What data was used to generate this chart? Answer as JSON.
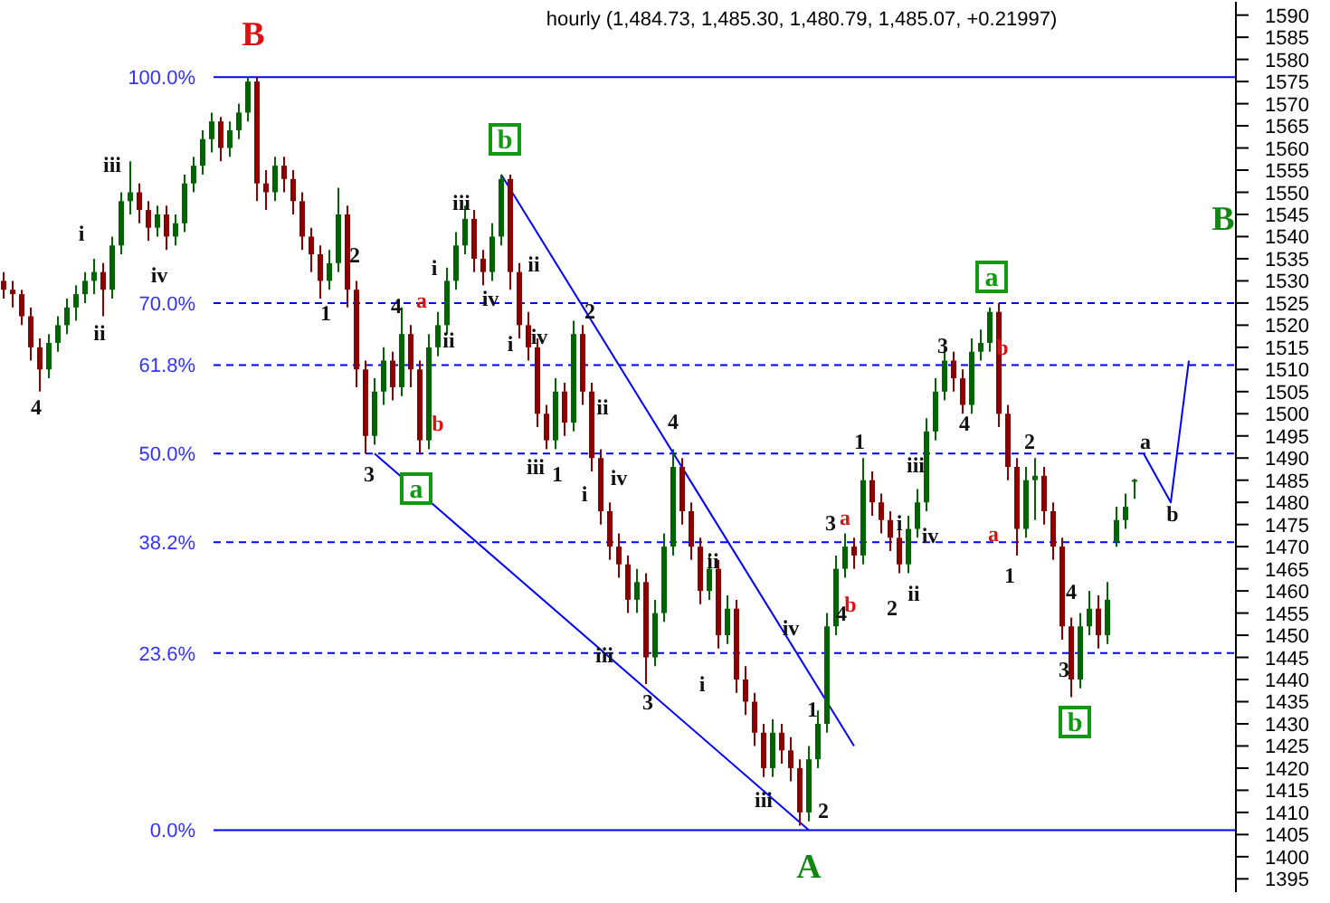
{
  "chart_data": {
    "type": "candlestick",
    "title": "hourly (1,484.73, 1,485.30, 1,480.79, 1,485.07, +0.21997)",
    "categories": [
      null,
      null,
      null,
      null,
      null,
      null,
      null,
      null,
      null,
      null,
      null,
      null,
      null,
      null,
      null,
      null,
      null,
      null,
      null,
      null,
      null,
      null,
      null,
      null,
      null,
      null,
      null,
      null,
      null,
      null,
      null,
      null,
      null,
      null,
      null,
      null,
      null,
      null,
      null,
      null,
      null,
      null,
      null,
      null,
      null,
      null,
      null,
      null,
      null,
      null,
      null,
      null,
      null,
      null,
      null,
      null,
      null,
      null,
      null,
      null,
      null,
      null,
      null,
      null,
      null,
      null,
      null,
      null,
      null,
      null,
      null,
      null,
      null,
      null,
      null,
      null,
      null,
      null,
      null,
      null,
      null,
      null,
      null,
      null,
      null,
      null,
      null,
      null,
      null,
      null,
      null,
      null,
      null,
      null,
      null,
      null,
      null,
      null,
      null,
      null,
      null,
      null,
      null,
      null,
      null,
      null,
      null,
      null,
      null,
      null,
      null,
      null,
      null,
      null,
      null,
      null,
      null,
      null,
      null,
      null,
      null,
      null,
      null,
      null,
      null,
      null,
      null,
      null,
      null,
      null,
      null,
      null
    ],
    "ohlc": [
      [
        1530,
        1532,
        1526,
        1528
      ],
      [
        1528,
        1530,
        1524,
        1527
      ],
      [
        1527,
        1528,
        1520,
        1522
      ],
      [
        1522,
        1524,
        1512,
        1515
      ],
      [
        1515,
        1517,
        1505,
        1510
      ],
      [
        1510,
        1518,
        1508,
        1516
      ],
      [
        1516,
        1522,
        1514,
        1520
      ],
      [
        1520,
        1526,
        1518,
        1524
      ],
      [
        1524,
        1529,
        1521,
        1527
      ],
      [
        1527,
        1532,
        1525,
        1530
      ],
      [
        1530,
        1535,
        1527,
        1532
      ],
      [
        1532,
        1534,
        1522,
        1528
      ],
      [
        1528,
        1540,
        1526,
        1538
      ],
      [
        1538,
        1550,
        1536,
        1548
      ],
      [
        1548,
        1557,
        1545,
        1550
      ],
      [
        1550,
        1552,
        1543,
        1546
      ],
      [
        1546,
        1548,
        1539,
        1542
      ],
      [
        1542,
        1547,
        1540,
        1545
      ],
      [
        1545,
        1547,
        1537,
        1540
      ],
      [
        1540,
        1545,
        1538,
        1543
      ],
      [
        1543,
        1554,
        1541,
        1552
      ],
      [
        1552,
        1558,
        1550,
        1556
      ],
      [
        1556,
        1564,
        1554,
        1562
      ],
      [
        1562,
        1568,
        1559,
        1566
      ],
      [
        1566,
        1567,
        1557,
        1560
      ],
      [
        1560,
        1566,
        1558,
        1564
      ],
      [
        1564,
        1570,
        1562,
        1568
      ],
      [
        1568,
        1576,
        1566,
        1575
      ],
      [
        1575,
        1576,
        1548,
        1552
      ],
      [
        1552,
        1555,
        1546,
        1550
      ],
      [
        1550,
        1558,
        1548,
        1556
      ],
      [
        1556,
        1558,
        1550,
        1553
      ],
      [
        1553,
        1555,
        1545,
        1548
      ],
      [
        1548,
        1550,
        1537,
        1540
      ],
      [
        1540,
        1542,
        1532,
        1536
      ],
      [
        1536,
        1538,
        1526,
        1530
      ],
      [
        1530,
        1537,
        1528,
        1534
      ],
      [
        1534,
        1551,
        1532,
        1545
      ],
      [
        1545,
        1547,
        1524,
        1528
      ],
      [
        1528,
        1530,
        1506,
        1510
      ],
      [
        1510,
        1512,
        1491,
        1495
      ],
      [
        1495,
        1508,
        1493,
        1505
      ],
      [
        1505,
        1515,
        1502,
        1512
      ],
      [
        1512,
        1514,
        1503,
        1506
      ],
      [
        1506,
        1524,
        1504,
        1518
      ],
      [
        1518,
        1520,
        1506,
        1510
      ],
      [
        1510,
        1512,
        1491,
        1494
      ],
      [
        1494,
        1518,
        1492,
        1515
      ],
      [
        1515,
        1523,
        1513,
        1520
      ],
      [
        1520,
        1533,
        1518,
        1530
      ],
      [
        1530,
        1541,
        1528,
        1538
      ],
      [
        1538,
        1547,
        1536,
        1544
      ],
      [
        1544,
        1546,
        1532,
        1535
      ],
      [
        1535,
        1537,
        1529,
        1532
      ],
      [
        1532,
        1543,
        1530,
        1540
      ],
      [
        1540,
        1554,
        1538,
        1553
      ],
      [
        1553,
        1554,
        1528,
        1532
      ],
      [
        1532,
        1534,
        1517,
        1520
      ],
      [
        1520,
        1523,
        1512,
        1515
      ],
      [
        1515,
        1517,
        1497,
        1500
      ],
      [
        1500,
        1502,
        1492,
        1494
      ],
      [
        1494,
        1508,
        1492,
        1505
      ],
      [
        1505,
        1507,
        1495,
        1498
      ],
      [
        1498,
        1521,
        1496,
        1518
      ],
      [
        1518,
        1520,
        1502,
        1505
      ],
      [
        1505,
        1507,
        1487,
        1490
      ],
      [
        1490,
        1492,
        1475,
        1478
      ],
      [
        1478,
        1480,
        1467,
        1470
      ],
      [
        1470,
        1473,
        1463,
        1466
      ],
      [
        1466,
        1468,
        1455,
        1458
      ],
      [
        1458,
        1465,
        1455,
        1462
      ],
      [
        1462,
        1464,
        1439,
        1445
      ],
      [
        1445,
        1458,
        1443,
        1455
      ],
      [
        1455,
        1473,
        1453,
        1470
      ],
      [
        1470,
        1492,
        1468,
        1488
      ],
      [
        1488,
        1490,
        1475,
        1478
      ],
      [
        1478,
        1480,
        1467,
        1470
      ],
      [
        1470,
        1472,
        1457,
        1460
      ],
      [
        1460,
        1468,
        1458,
        1465
      ],
      [
        1465,
        1467,
        1447,
        1450
      ],
      [
        1450,
        1459,
        1448,
        1456
      ],
      [
        1456,
        1458,
        1437,
        1440
      ],
      [
        1440,
        1443,
        1432,
        1435
      ],
      [
        1435,
        1437,
        1425,
        1428
      ],
      [
        1428,
        1430,
        1418,
        1420
      ],
      [
        1420,
        1431,
        1418,
        1428
      ],
      [
        1428,
        1430,
        1421,
        1424
      ],
      [
        1424,
        1427,
        1417,
        1420
      ],
      [
        1420,
        1422,
        1407,
        1410
      ],
      [
        1410,
        1425,
        1408,
        1422
      ],
      [
        1422,
        1433,
        1420,
        1430
      ],
      [
        1430,
        1455,
        1428,
        1452
      ],
      [
        1452,
        1468,
        1450,
        1465
      ],
      [
        1465,
        1473,
        1463,
        1470
      ],
      [
        1470,
        1472,
        1465,
        1468
      ],
      [
        1468,
        1490,
        1466,
        1485
      ],
      [
        1485,
        1487,
        1477,
        1480
      ],
      [
        1480,
        1482,
        1473,
        1476
      ],
      [
        1476,
        1478,
        1469,
        1472
      ],
      [
        1472,
        1474,
        1464,
        1466
      ],
      [
        1466,
        1477,
        1464,
        1474
      ],
      [
        1474,
        1483,
        1472,
        1480
      ],
      [
        1480,
        1499,
        1478,
        1496
      ],
      [
        1496,
        1508,
        1494,
        1505
      ],
      [
        1505,
        1515,
        1503,
        1512
      ],
      [
        1512,
        1514,
        1505,
        1508
      ],
      [
        1508,
        1510,
        1500,
        1502
      ],
      [
        1502,
        1517,
        1500,
        1514
      ],
      [
        1514,
        1519,
        1512,
        1516
      ],
      [
        1516,
        1524,
        1514,
        1523
      ],
      [
        1523,
        1525,
        1497,
        1500
      ],
      [
        1500,
        1502,
        1485,
        1488
      ],
      [
        1488,
        1490,
        1468,
        1474
      ],
      [
        1474,
        1488,
        1472,
        1485
      ],
      [
        1485,
        1490,
        1476,
        1486
      ],
      [
        1486,
        1488,
        1475,
        1478
      ],
      [
        1478,
        1480,
        1467,
        1470
      ],
      [
        1470,
        1472,
        1449,
        1452
      ],
      [
        1452,
        1454,
        1436,
        1440
      ],
      [
        1440,
        1455,
        1438,
        1452
      ],
      [
        1452,
        1460,
        1450,
        1456
      ],
      [
        1456,
        1459,
        1447,
        1450
      ],
      [
        1450,
        1462,
        1448,
        1458
      ],
      [
        1471,
        1479,
        1470,
        1476
      ],
      [
        1476,
        1482,
        1474,
        1479
      ],
      [
        1484.73,
        1485.3,
        1480.79,
        1485.07
      ],
      null,
      null,
      null,
      null,
      null,
      null
    ],
    "series": [
      {
        "type": "line",
        "color": "#0000ff",
        "values": [
          null,
          null,
          null,
          null,
          null,
          null,
          null,
          null,
          null,
          null,
          null,
          null,
          null,
          null,
          null,
          null,
          null,
          null,
          null,
          null,
          null,
          null,
          null,
          null,
          null,
          null,
          null,
          null,
          null,
          null,
          null,
          null,
          null,
          null,
          null,
          null,
          null,
          null,
          null,
          null,
          null,
          null,
          null,
          null,
          null,
          null,
          null,
          null,
          null,
          null,
          null,
          null,
          null,
          null,
          null,
          1554,
          null,
          null,
          null,
          null,
          null,
          null,
          null,
          null,
          null,
          null,
          null,
          null,
          null,
          null,
          null,
          null,
          null,
          null,
          null,
          null,
          null,
          null,
          null,
          null,
          null,
          null,
          null,
          null,
          null,
          null,
          null,
          null,
          null,
          null,
          null,
          null,
          null,
          null,
          1425,
          null,
          null,
          null,
          null,
          null,
          null,
          null,
          null,
          null,
          null,
          null,
          null,
          null,
          null,
          null,
          null,
          null,
          null,
          null,
          null,
          null,
          null,
          null,
          null,
          null,
          null,
          null,
          null,
          null,
          null,
          null,
          null,
          null,
          null,
          null,
          null,
          null
        ]
      },
      {
        "type": "line",
        "color": "#0000ff",
        "values": [
          null,
          null,
          null,
          null,
          null,
          null,
          null,
          null,
          null,
          null,
          null,
          null,
          null,
          null,
          null,
          null,
          null,
          null,
          null,
          null,
          null,
          null,
          null,
          null,
          null,
          null,
          null,
          null,
          null,
          null,
          null,
          null,
          null,
          null,
          null,
          null,
          null,
          null,
          null,
          null,
          null,
          1491,
          null,
          null,
          null,
          null,
          null,
          null,
          null,
          null,
          null,
          null,
          null,
          null,
          null,
          null,
          null,
          null,
          null,
          null,
          null,
          null,
          null,
          null,
          null,
          null,
          null,
          null,
          null,
          null,
          null,
          null,
          null,
          null,
          null,
          null,
          null,
          null,
          null,
          null,
          null,
          null,
          null,
          null,
          null,
          null,
          null,
          null,
          null,
          1406,
          null,
          null,
          null,
          null,
          null,
          null,
          null,
          null,
          null,
          null,
          null,
          null,
          null,
          null,
          null,
          null,
          null,
          null,
          null,
          null,
          null,
          null,
          null,
          null,
          null,
          null,
          null,
          null,
          null,
          null,
          null,
          null,
          null,
          null,
          null,
          null,
          null,
          null,
          null,
          null,
          null,
          null
        ]
      },
      {
        "type": "line",
        "color": "#0000ff",
        "values": [
          null,
          null,
          null,
          null,
          null,
          null,
          null,
          null,
          null,
          null,
          null,
          null,
          null,
          null,
          null,
          null,
          null,
          null,
          null,
          null,
          null,
          null,
          null,
          null,
          null,
          null,
          null,
          null,
          null,
          null,
          null,
          null,
          null,
          null,
          null,
          null,
          null,
          null,
          null,
          null,
          null,
          null,
          null,
          null,
          null,
          null,
          null,
          null,
          null,
          null,
          null,
          null,
          null,
          null,
          null,
          null,
          null,
          null,
          null,
          null,
          null,
          null,
          null,
          null,
          null,
          null,
          null,
          null,
          null,
          null,
          null,
          null,
          null,
          null,
          null,
          null,
          null,
          null,
          null,
          null,
          null,
          null,
          null,
          null,
          null,
          null,
          null,
          null,
          null,
          null,
          null,
          null,
          null,
          null,
          null,
          null,
          null,
          null,
          null,
          null,
          null,
          null,
          null,
          null,
          null,
          null,
          null,
          null,
          null,
          null,
          null,
          null,
          null,
          null,
          null,
          null,
          null,
          null,
          null,
          null,
          null,
          null,
          null,
          null,
          null,
          null,
          1491,
          null,
          null,
          1480,
          null,
          1512
        ]
      }
    ],
    "ylim": [
      1392,
      1593
    ],
    "yticks": [
      1395,
      1400,
      1405,
      1410,
      1415,
      1420,
      1425,
      1430,
      1435,
      1440,
      1445,
      1450,
      1455,
      1460,
      1465,
      1470,
      1475,
      1480,
      1485,
      1490,
      1495,
      1500,
      1505,
      1510,
      1515,
      1520,
      1525,
      1530,
      1535,
      1540,
      1545,
      1550,
      1555,
      1560,
      1565,
      1570,
      1575,
      1580,
      1585,
      1590
    ],
    "tick_labels": "y",
    "ref_lines": [
      {
        "axis": "y",
        "value": 1576,
        "color": "#0000ff",
        "line_style": "solid"
      },
      {
        "axis": "y",
        "value": 1525,
        "color": "#0000ff",
        "line_style": "dashed"
      },
      {
        "axis": "y",
        "value": 1511,
        "color": "#0000ff",
        "line_style": "dashed"
      },
      {
        "axis": "y",
        "value": 1491,
        "color": "#0000ff",
        "line_style": "dashed"
      },
      {
        "axis": "y",
        "value": 1471,
        "color": "#0000ff",
        "line_style": "dashed"
      },
      {
        "axis": "y",
        "value": 1446,
        "color": "#0000ff",
        "line_style": "dashed"
      },
      {
        "axis": "y",
        "value": 1406,
        "color": "#0000ff",
        "line_style": "solid"
      }
    ],
    "annotations": [
      "100.0%",
      "70.0%",
      "61.8%",
      "50.0%",
      "38.2%",
      "23.6%",
      "0.0%",
      "B",
      "A",
      "B",
      "b",
      "a",
      "a",
      "b",
      "4",
      "ii",
      "i",
      "iii",
      "iv",
      "1",
      "2",
      "3",
      "4",
      "i",
      "iii",
      "ii",
      "iv",
      "ii",
      "iv",
      "i",
      "iii",
      "1",
      "2",
      "ii",
      "iv",
      "i",
      "4",
      "ii",
      "iii",
      "3",
      "i",
      "iii",
      "iv",
      "1",
      "2",
      "3",
      "4",
      "1",
      "iii",
      "i",
      "iv",
      "2",
      "ii",
      "3",
      "4",
      "2",
      "1",
      "3",
      "4",
      "a",
      "b",
      "a",
      "b",
      "a",
      "b",
      "b",
      "a"
    ]
  }
}
